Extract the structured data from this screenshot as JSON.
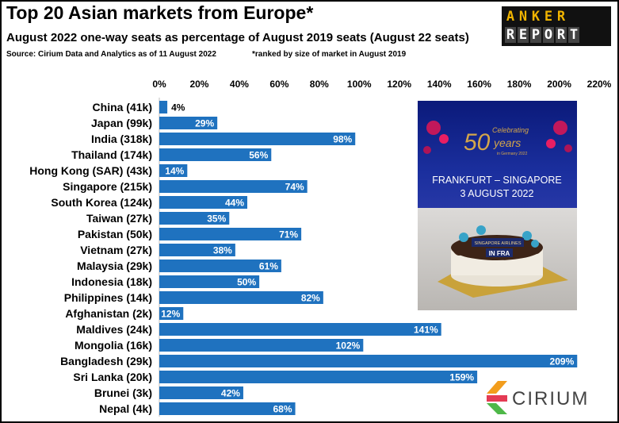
{
  "header": {
    "title": "Top 20 Asian markets from Europe*",
    "subtitle": "August 2022 one-way seats as percentage of August 2019 seats (August 22 seats)",
    "source": "Source: Cirium Data and Analytics as of 11 August 2022",
    "note": "*ranked by size of market in August 2019"
  },
  "logo": {
    "row1": [
      "A",
      "N",
      "K",
      "E",
      "R"
    ],
    "row2": [
      "R",
      "E",
      "P",
      "O",
      "R",
      "T"
    ]
  },
  "photo": {
    "line1": "FRANKFURT – SINGAPORE",
    "line2": "3 AUGUST 2022",
    "celebrating": "Celebrating",
    "years": "50",
    "years_word": "years",
    "germany": "in Germany 2022",
    "cake_text": "SINGAPORE AIRLINES",
    "cake_text2": "IN FRA"
  },
  "brand": {
    "cirium": "CIRIUM"
  },
  "colors": {
    "bar": "#1F72BF",
    "label_inside": "#ffffff",
    "label_outside": "#000000"
  },
  "chart_data": {
    "type": "bar",
    "orientation": "horizontal",
    "categories": [
      "China (41k)",
      "Japan (99k)",
      "India (318k)",
      "Thailand (174k)",
      "Hong Kong (SAR) (43k)",
      "Singapore (215k)",
      "South Korea (124k)",
      "Taiwan (27k)",
      "Pakistan (50k)",
      "Vietnam (27k)",
      "Malaysia (29k)",
      "Indonesia (18k)",
      "Philippines (14k)",
      "Afghanistan (2k)",
      "Maldives (24k)",
      "Mongolia (16k)",
      "Bangladesh (29k)",
      "Sri Lanka (20k)",
      "Brunei (3k)",
      "Nepal (4k)"
    ],
    "values": [
      4,
      29,
      98,
      56,
      14,
      74,
      44,
      35,
      71,
      38,
      61,
      50,
      82,
      12,
      141,
      102,
      209,
      159,
      42,
      68
    ],
    "data_labels": [
      "4%",
      "29%",
      "98%",
      "56%",
      "14%",
      "74%",
      "44%",
      "35%",
      "71%",
      "38%",
      "61%",
      "50%",
      "82%",
      "12%",
      "141%",
      "102%",
      "209%",
      "159%",
      "42%",
      "68%"
    ],
    "xticks": [
      "0%",
      "20%",
      "40%",
      "60%",
      "80%",
      "100%",
      "120%",
      "140%",
      "160%",
      "180%",
      "200%",
      "220%"
    ],
    "xlim": [
      0,
      220
    ],
    "grid": false,
    "xaxis_position": "top"
  }
}
